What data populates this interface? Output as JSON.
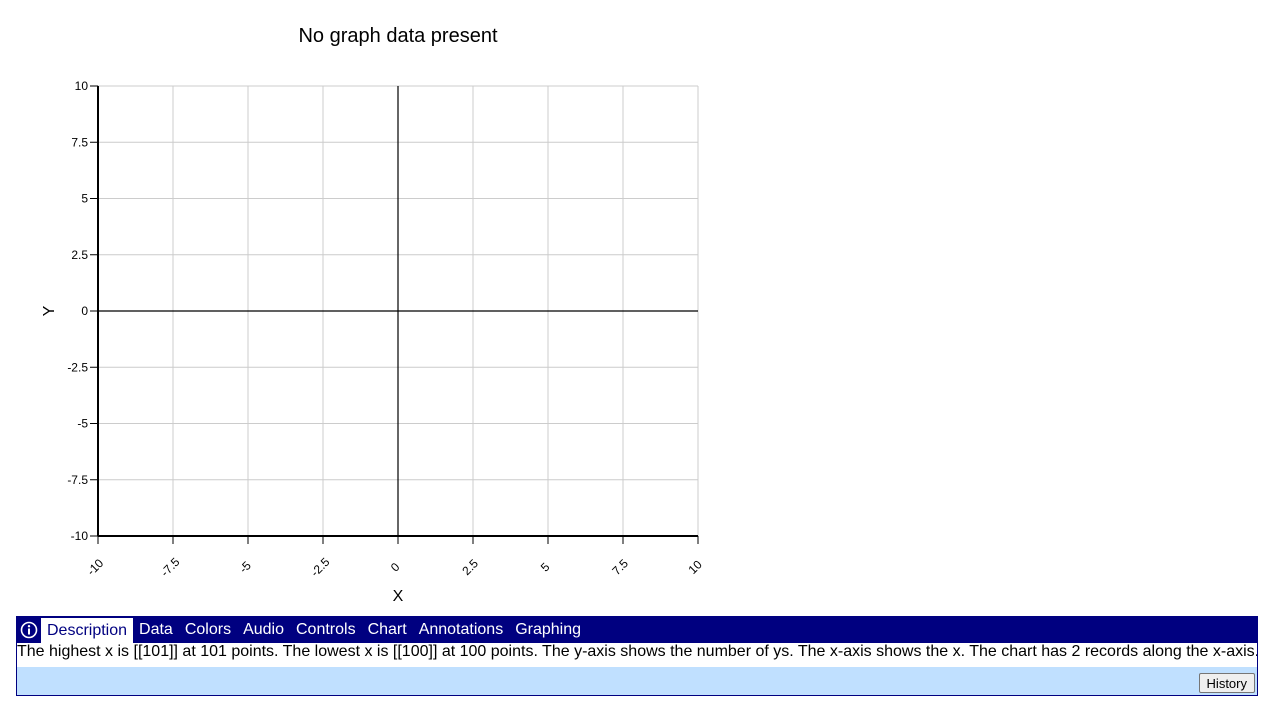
{
  "chart_data": {
    "type": "scatter",
    "title": "No graph data present",
    "xlabel": "X",
    "ylabel": "Y",
    "xlim": [
      -10,
      10
    ],
    "ylim": [
      -10,
      10
    ],
    "x_ticks": [
      "-10",
      "-7.5",
      "-5",
      "-2.5",
      "0",
      "2.5",
      "5",
      "7.5",
      "10"
    ],
    "y_ticks": [
      "10",
      "7.5",
      "5",
      "2.5",
      "0",
      "-2.5",
      "-5",
      "-7.5",
      "-10"
    ],
    "grid": true,
    "series": []
  },
  "panel": {
    "tabs": [
      {
        "label": "Description"
      },
      {
        "label": "Data"
      },
      {
        "label": "Colors"
      },
      {
        "label": "Audio"
      },
      {
        "label": "Controls"
      },
      {
        "label": "Chart"
      },
      {
        "label": "Annotations"
      },
      {
        "label": "Graphing"
      }
    ],
    "description": "The highest x is [[101]] at 101 points. The lowest x is [[100]] at 100 points. The y-axis shows the number of ys. The x-axis shows the x. The chart has 2 records along the x-axis.",
    "history_label": "History"
  },
  "colors": {
    "panel_header": "#000080",
    "panel_body": "#c0e0ff",
    "grid": "#cccccc",
    "axis": "#000000"
  },
  "icons": {
    "info": "info-circle-icon"
  }
}
